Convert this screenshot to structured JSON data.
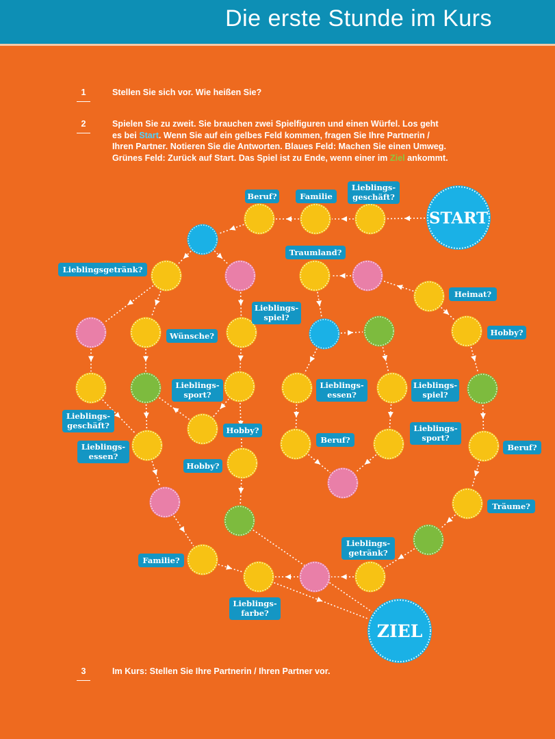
{
  "header": {
    "title": "Die erste Stunde im Kurs"
  },
  "tasks": [
    {
      "num": "1",
      "text": "Stellen Sie sich vor. Wie heißen Sie?"
    },
    {
      "num": "2",
      "line1": "Spielen Sie zu zweit. Sie brauchen zwei Spielfiguren und einen Würfel. Los geht",
      "line2_a": "es bei ",
      "line2_hl": "Start",
      "line2_b": ". Wenn Sie auf ein gelbes Feld kommen, fragen Sie Ihre Partnerin /",
      "line3": "Ihren Partner. Notieren Sie die Antworten. Blaues Feld: Machen Sie einen Umweg.",
      "line4_a": "Grünes Feld: Zurück auf Start. Das Spiel ist zu Ende, wenn einer im ",
      "line4_hl": "Ziel",
      "line4_b": " ankommt."
    },
    {
      "num": "3",
      "text": "Im Kurs: Stellen Sie Ihre Partnerin / Ihren Partner vor."
    }
  ],
  "board": {
    "start_label": "START",
    "goal_label": "ZIEL",
    "colors": {
      "yellow": "#f7c214",
      "blue": "#1ab1e6",
      "pink": "#e97fa8",
      "green": "#7dbb3e",
      "label": "#1496c4",
      "arrow": "#ffffff"
    },
    "labels": [
      {
        "id": "beruf-1",
        "lines": [
          "Beruf?"
        ]
      },
      {
        "id": "familie-1",
        "lines": [
          "Familie"
        ]
      },
      {
        "id": "lieblingsgeschaeft-1",
        "lines": [
          "Lieblings-",
          "geschäft?"
        ]
      },
      {
        "id": "traumland",
        "lines": [
          "Traumland?"
        ]
      },
      {
        "id": "lieblingsgetraenk-1",
        "lines": [
          "Lieblingsgetränk?"
        ]
      },
      {
        "id": "lieblingsspiel-1",
        "lines": [
          "Lieblings-",
          "spiel?"
        ]
      },
      {
        "id": "heimat",
        "lines": [
          "Heimat?"
        ]
      },
      {
        "id": "wuensche",
        "lines": [
          "Wünsche?"
        ]
      },
      {
        "id": "hobby-1",
        "lines": [
          "Hobby?"
        ]
      },
      {
        "id": "lieblingssport-1",
        "lines": [
          "Lieblings-",
          "sport?"
        ]
      },
      {
        "id": "lieblingsessen-1",
        "lines": [
          "Lieblings-",
          "essen?"
        ]
      },
      {
        "id": "lieblingsspiel-2",
        "lines": [
          "Lieblings-",
          "spiel?"
        ]
      },
      {
        "id": "lieblingsgeschaeft-2",
        "lines": [
          "Lieblings-",
          "geschäft?"
        ]
      },
      {
        "id": "hobby-2",
        "lines": [
          "Hobby?"
        ]
      },
      {
        "id": "lieblingssport-2",
        "lines": [
          "Lieblings-",
          "sport?"
        ]
      },
      {
        "id": "lieblingsessen-2",
        "lines": [
          "Lieblings-",
          "essen?"
        ]
      },
      {
        "id": "beruf-2",
        "lines": [
          "Beruf?"
        ]
      },
      {
        "id": "beruf-3",
        "lines": [
          "Beruf?"
        ]
      },
      {
        "id": "hobby-3",
        "lines": [
          "Hobby?"
        ]
      },
      {
        "id": "traeume",
        "lines": [
          "Träume?"
        ]
      },
      {
        "id": "lieblingsgetraenk-2",
        "lines": [
          "Lieblings-",
          "getränk?"
        ]
      },
      {
        "id": "familie-2",
        "lines": [
          "Familie?"
        ]
      },
      {
        "id": "lieblingsfarbe",
        "lines": [
          "Lieblings-",
          "farbe?"
        ]
      }
    ]
  }
}
